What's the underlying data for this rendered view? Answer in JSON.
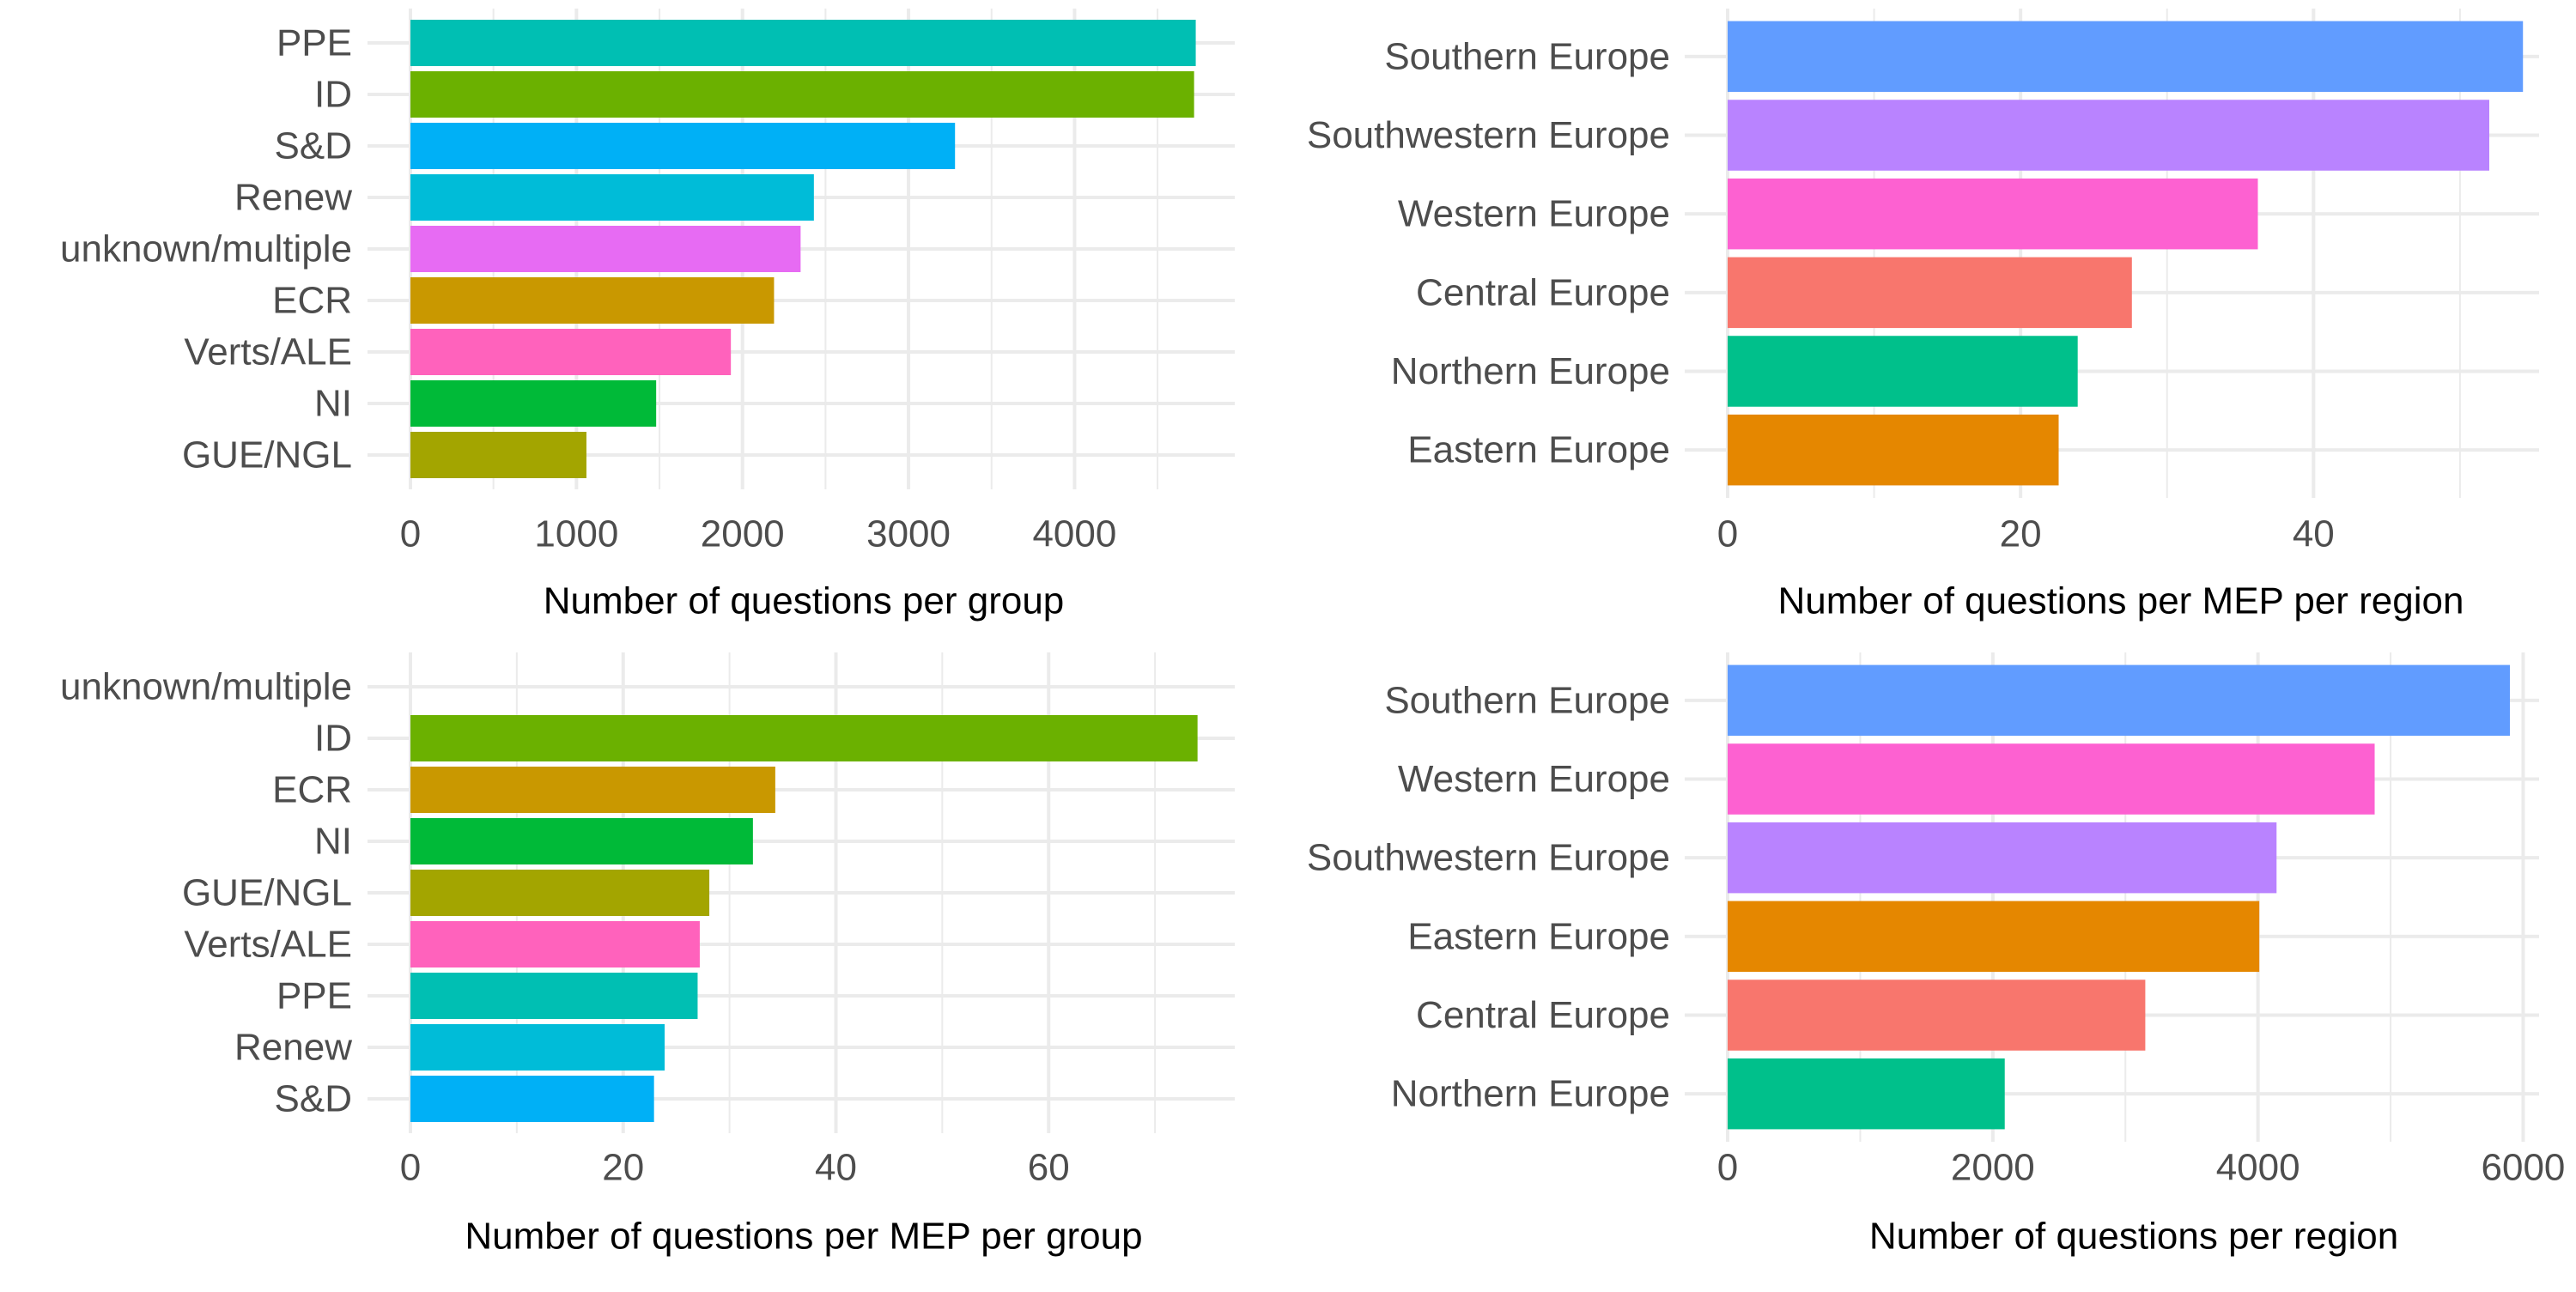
{
  "chart_data": [
    {
      "type": "bar",
      "orientation": "horizontal",
      "title": "",
      "xlabel": "Number of questions per group",
      "ylabel": "",
      "xlim": [
        0,
        4965
      ],
      "x_ticks": [
        0,
        1000,
        2000,
        3000,
        4000
      ],
      "x_tick_labels": [
        "0",
        "1000",
        "2000",
        "3000",
        "4000"
      ],
      "grid": true,
      "legend": "none",
      "categories": [
        "PPE",
        "ID",
        "S&D",
        "Renew",
        "unknown/multiple",
        "ECR",
        "Verts/ALE",
        "NI",
        "GUE/NGL"
      ],
      "values": [
        4730,
        4720,
        3280,
        2430,
        2350,
        2190,
        1930,
        1480,
        1060
      ],
      "colors": [
        "#00BFB3",
        "#6BB100",
        "#00B0F6",
        "#00BCD8",
        "#E76BF3",
        "#C99800",
        "#FF62BC",
        "#00BA38",
        "#A3A500"
      ]
    },
    {
      "type": "bar",
      "orientation": "horizontal",
      "title": "",
      "xlabel": "Number of questions per MEP per region",
      "ylabel": "",
      "xlim": [
        0,
        55.4
      ],
      "x_ticks": [
        0,
        20,
        40
      ],
      "x_tick_labels": [
        "0",
        "20",
        "40"
      ],
      "grid": true,
      "legend": "none",
      "categories": [
        "Southern Europe",
        "Southwestern Europe",
        "Western Europe",
        "Central Europe",
        "Northern Europe",
        "Eastern Europe"
      ],
      "values": [
        54.3,
        52.0,
        36.2,
        27.6,
        23.9,
        22.6
      ],
      "colors": [
        "#619CFF",
        "#B983FF",
        "#FD61D1",
        "#F8766D",
        "#00C08B",
        "#E58700"
      ]
    },
    {
      "type": "bar",
      "orientation": "horizontal",
      "title": "",
      "xlabel": "Number of questions per MEP per group",
      "ylabel": "",
      "xlim": [
        0,
        77.5
      ],
      "x_ticks": [
        0,
        20,
        40,
        60
      ],
      "x_tick_labels": [
        "0",
        "20",
        "40",
        "60"
      ],
      "grid": true,
      "legend": "none",
      "categories": [
        "unknown/multiple",
        "ID",
        "ECR",
        "NI",
        "GUE/NGL",
        "Verts/ALE",
        "PPE",
        "Renew",
        "S&D"
      ],
      "values": [
        0,
        74.0,
        34.3,
        32.2,
        28.1,
        27.2,
        27.0,
        23.9,
        22.9
      ],
      "colors": [
        "#E76BF3",
        "#6BB100",
        "#C99800",
        "#00BA38",
        "#A3A500",
        "#FF62BC",
        "#00BFB3",
        "#00BCD8",
        "#00B0F6"
      ]
    },
    {
      "type": "bar",
      "orientation": "horizontal",
      "title": "",
      "xlabel": "Number of questions per region",
      "ylabel": "",
      "xlim": [
        0,
        6120
      ],
      "x_ticks": [
        0,
        2000,
        4000,
        6000
      ],
      "x_tick_labels": [
        "0",
        "2000",
        "4000",
        "6000"
      ],
      "grid": true,
      "legend": "none",
      "categories": [
        "Southern Europe",
        "Western Europe",
        "Southwestern Europe",
        "Eastern Europe",
        "Central Europe",
        "Northern Europe"
      ],
      "values": [
        5900,
        4880,
        4140,
        4010,
        3150,
        2090
      ],
      "colors": [
        "#619CFF",
        "#FD61D1",
        "#B983FF",
        "#E58700",
        "#F8766D",
        "#00C08B"
      ]
    }
  ]
}
